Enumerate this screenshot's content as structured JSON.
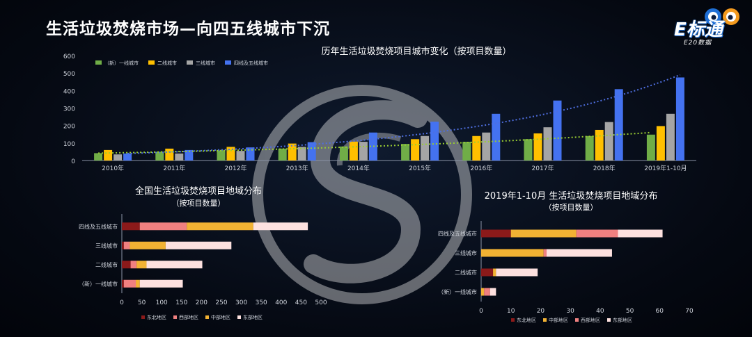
{
  "page": {
    "title": "生活垃圾焚烧市场—向四五线城市下沉",
    "brand": {
      "main": "E标通",
      "sub": "E20数据"
    }
  },
  "colors": {
    "tier1": "#70ad47",
    "tier2": "#ffc000",
    "tier3": "#a5a5a5",
    "tier45": "#4472f0",
    "northeast": "#8b1a1a",
    "west": "#f08080",
    "central": "#f2b233",
    "east": "#fde1df",
    "trend_blue": "#4f6fe0",
    "trend_green": "#9acd32"
  },
  "chart_data": [
    {
      "type": "bar",
      "title": "历年生活垃圾焚烧项目城市变化（按项目数量）",
      "categories": [
        "2010年",
        "2011年",
        "2012年",
        "2013年",
        "2014年",
        "2015年",
        "2016年",
        "2017年",
        "2018年",
        "2019年1-10月"
      ],
      "series": [
        {
          "name": "（新）一线城市",
          "color_key": "tier1",
          "values": [
            42,
            50,
            58,
            68,
            80,
            95,
            107,
            122,
            140,
            148
          ]
        },
        {
          "name": "二线城市",
          "color_key": "tier2",
          "values": [
            60,
            68,
            78,
            97,
            108,
            122,
            140,
            155,
            175,
            197
          ]
        },
        {
          "name": "三线城市",
          "color_key": "tier3",
          "values": [
            35,
            40,
            55,
            78,
            107,
            140,
            160,
            190,
            220,
            267
          ]
        },
        {
          "name": "四线及五线城市",
          "color_key": "tier45",
          "values": [
            40,
            60,
            75,
            105,
            160,
            222,
            267,
            343,
            408,
            475
          ]
        }
      ],
      "trendlines": [
        {
          "series": "四线及五线城市",
          "style": "dotted",
          "color_key": "trend_blue",
          "start": 40,
          "end": 490
        },
        {
          "series": "（新）一线城市",
          "style": "dotted",
          "color_key": "trend_green",
          "start": 42,
          "end": 160
        }
      ],
      "ylim": [
        0,
        600
      ],
      "yticks": [
        0,
        100,
        200,
        300,
        400,
        500,
        600
      ],
      "legend": "top-left",
      "grid": false
    },
    {
      "type": "bar",
      "orientation": "horizontal",
      "stacked": true,
      "title": "全国生活垃圾焚烧项目地域分布",
      "subtitle": "（按项目数量）",
      "categories": [
        "四线及五线城市",
        "三线城市",
        "二线城市",
        "（新）一线城市"
      ],
      "series": [
        {
          "name": "东北地区",
          "color_key": "northeast",
          "values": [
            45,
            5,
            22,
            5
          ]
        },
        {
          "name": "西部地区",
          "color_key": "west",
          "values": [
            118,
            15,
            15,
            30
          ]
        },
        {
          "name": "中部地区",
          "color_key": "central",
          "values": [
            167,
            90,
            25,
            10
          ]
        },
        {
          "name": "东部地区",
          "color_key": "east",
          "values": [
            137,
            165,
            140,
            108
          ]
        }
      ],
      "xlim": [
        0,
        500
      ],
      "xticks": [
        0,
        50,
        100,
        150,
        200,
        250,
        300,
        350,
        400,
        450,
        500
      ],
      "legend": "bottom",
      "grid": false
    },
    {
      "type": "bar",
      "orientation": "horizontal",
      "stacked": true,
      "title": "2019年1-10月 生活垃圾焚烧项目地域分布",
      "subtitle": "（按项目数量）",
      "categories": [
        "四线及五线城市",
        "三线城市",
        "二线城市",
        "（新）一线城市"
      ],
      "series": [
        {
          "name": "东北地区",
          "color_key": "northeast",
          "values": [
            10,
            0,
            4,
            0
          ]
        },
        {
          "name": "中部地区",
          "color_key": "central",
          "values": [
            22,
            21,
            1,
            1
          ]
        },
        {
          "name": "西部地区",
          "color_key": "west",
          "values": [
            14,
            1,
            0,
            2
          ]
        },
        {
          "name": "东部地区",
          "color_key": "east",
          "values": [
            15,
            22,
            14,
            2
          ]
        }
      ],
      "xlim": [
        0,
        70
      ],
      "xticks": [
        0,
        10,
        20,
        30,
        40,
        50,
        60,
        70
      ],
      "legend": "bottom",
      "grid": false
    }
  ]
}
